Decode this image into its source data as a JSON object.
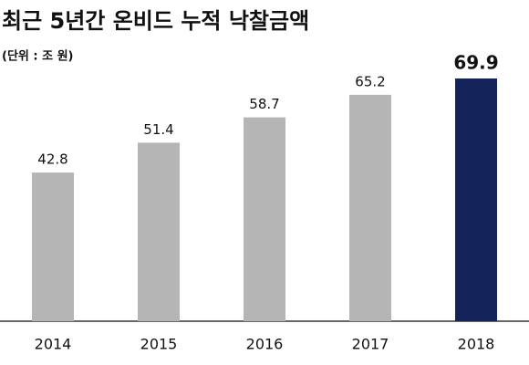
{
  "chart_data": {
    "type": "bar",
    "title": "최근 5년간 온비드 누적 낙찰금액",
    "subtitle": "(단위 : 조 원)",
    "categories": [
      "2014",
      "2015",
      "2016",
      "2017",
      "2018"
    ],
    "values": [
      42.8,
      51.4,
      58.7,
      65.2,
      69.9
    ],
    "colors": [
      "#b5b5b5",
      "#b5b5b5",
      "#b5b5b5",
      "#b5b5b5",
      "#14235a"
    ]
  }
}
